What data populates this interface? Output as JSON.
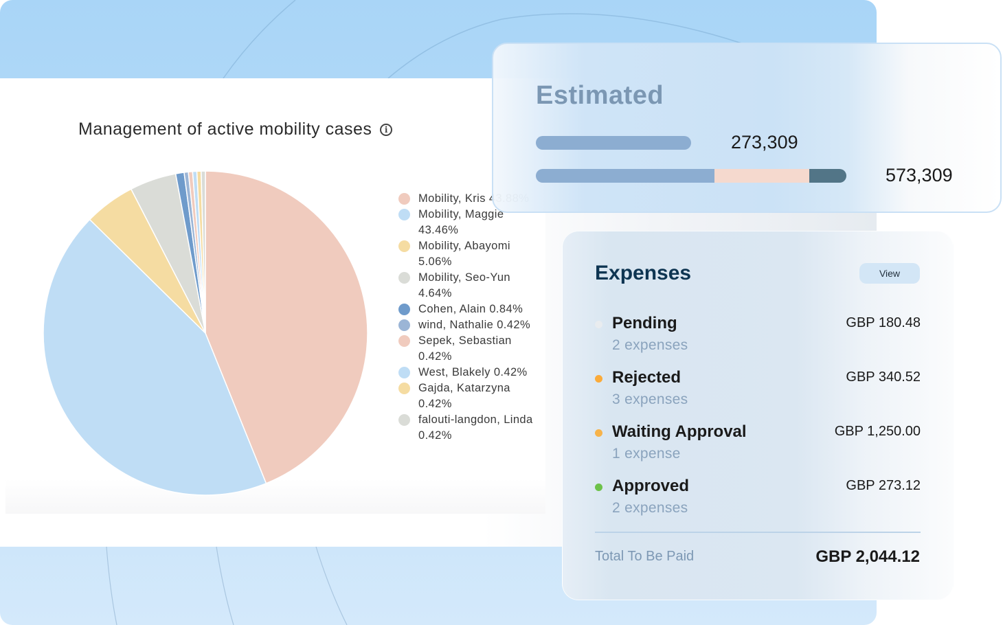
{
  "chart_data": {
    "type": "pie",
    "title": "Management of active mobility cases",
    "start_angle": "top",
    "direction": "clockwise",
    "legend_position": "right",
    "slices": [
      {
        "name": "Mobility, Kris",
        "value": 43.88,
        "label": "43.88%",
        "color": "#f0cbbe"
      },
      {
        "name": "Mobility, Maggie",
        "value": 43.46,
        "label": "43.46%",
        "color": "#bfddf5"
      },
      {
        "name": "Mobility, Abayomi",
        "value": 5.06,
        "label": "5.06%",
        "color": "#f5dca2"
      },
      {
        "name": "Mobility, Seo-Yun",
        "value": 4.64,
        "label": "4.64%",
        "color": "#dadcd7"
      },
      {
        "name": "Cohen, Alain",
        "value": 0.84,
        "label": "0.84%",
        "color": "#6f9bcb"
      },
      {
        "name": "wind, Nathalie",
        "value": 0.42,
        "label": "0.42%",
        "color": "#9bb5d6"
      },
      {
        "name": "Sepek, Sebastian",
        "value": 0.42,
        "label": "0.42%",
        "color": "#f0cbbe"
      },
      {
        "name": "West, Blakely",
        "value": 0.42,
        "label": "0.42%",
        "color": "#bfddf5"
      },
      {
        "name": "Gajda, Katarzyna",
        "value": 0.42,
        "label": "0.42%",
        "color": "#f5dca2"
      },
      {
        "name": "falouti-langdon, Linda",
        "value": 0.42,
        "label": "0.42%",
        "color": "#dadcd7"
      }
    ]
  },
  "chart": {
    "title": "Management of active mobility cases",
    "info_icon": "info-circle-icon",
    "legend": [
      {
        "text": "Mobility, Kris 43.88%",
        "color": "#f0cbbe"
      },
      {
        "text": "Mobility, Maggie 43.46%",
        "color": "#bfddf5"
      },
      {
        "text": "Mobility, Abayomi 5.06%",
        "color": "#f5dca2"
      },
      {
        "text": "Mobility, Seo-Yun 4.64%",
        "color": "#dadcd7"
      },
      {
        "text": "Cohen, Alain 0.84%",
        "color": "#6f9bcb"
      },
      {
        "text": "wind, Nathalie 0.42%",
        "color": "#9bb5d6"
      },
      {
        "text": "Sepek, Sebastian 0.42%",
        "color": "#f0cbbe"
      },
      {
        "text": "West, Blakely 0.42%",
        "color": "#bfddf5"
      },
      {
        "text": "Gajda, Katarzyna 0.42%",
        "color": "#f5dca2"
      },
      {
        "text": "falouti-langdon, Linda 0.42%",
        "color": "#dadcd7"
      }
    ]
  },
  "estimated": {
    "title": "Estimated",
    "bar1": {
      "value": "273,309",
      "fraction_of_max": 0.477,
      "color": "#8cadd1"
    },
    "bar2": {
      "value": "573,309",
      "segments": [
        {
          "fraction": 0.575,
          "color": "#8cadd1"
        },
        {
          "fraction": 0.305,
          "color": "#f5d9ce"
        },
        {
          "fraction": 0.12,
          "color": "#527587"
        }
      ]
    }
  },
  "expenses": {
    "title": "Expenses",
    "view_label": "View",
    "items": [
      {
        "status": "Pending",
        "count": "2 expenses",
        "amount": "GBP 180.48",
        "dot_color": "#e9ecef"
      },
      {
        "status": "Rejected",
        "count": "3 expenses",
        "amount": "GBP 340.52",
        "dot_color": "#fbab3a"
      },
      {
        "status": "Waiting Approval",
        "count": "1 expense",
        "amount": "GBP 1,250.00",
        "dot_color": "#f7b34a"
      },
      {
        "status": "Approved",
        "count": "2 expenses",
        "amount": "GBP 273.12",
        "dot_color": "#6dc24a"
      }
    ],
    "total_label": "Total To Be Paid",
    "total_value": "GBP 2,044.12"
  }
}
